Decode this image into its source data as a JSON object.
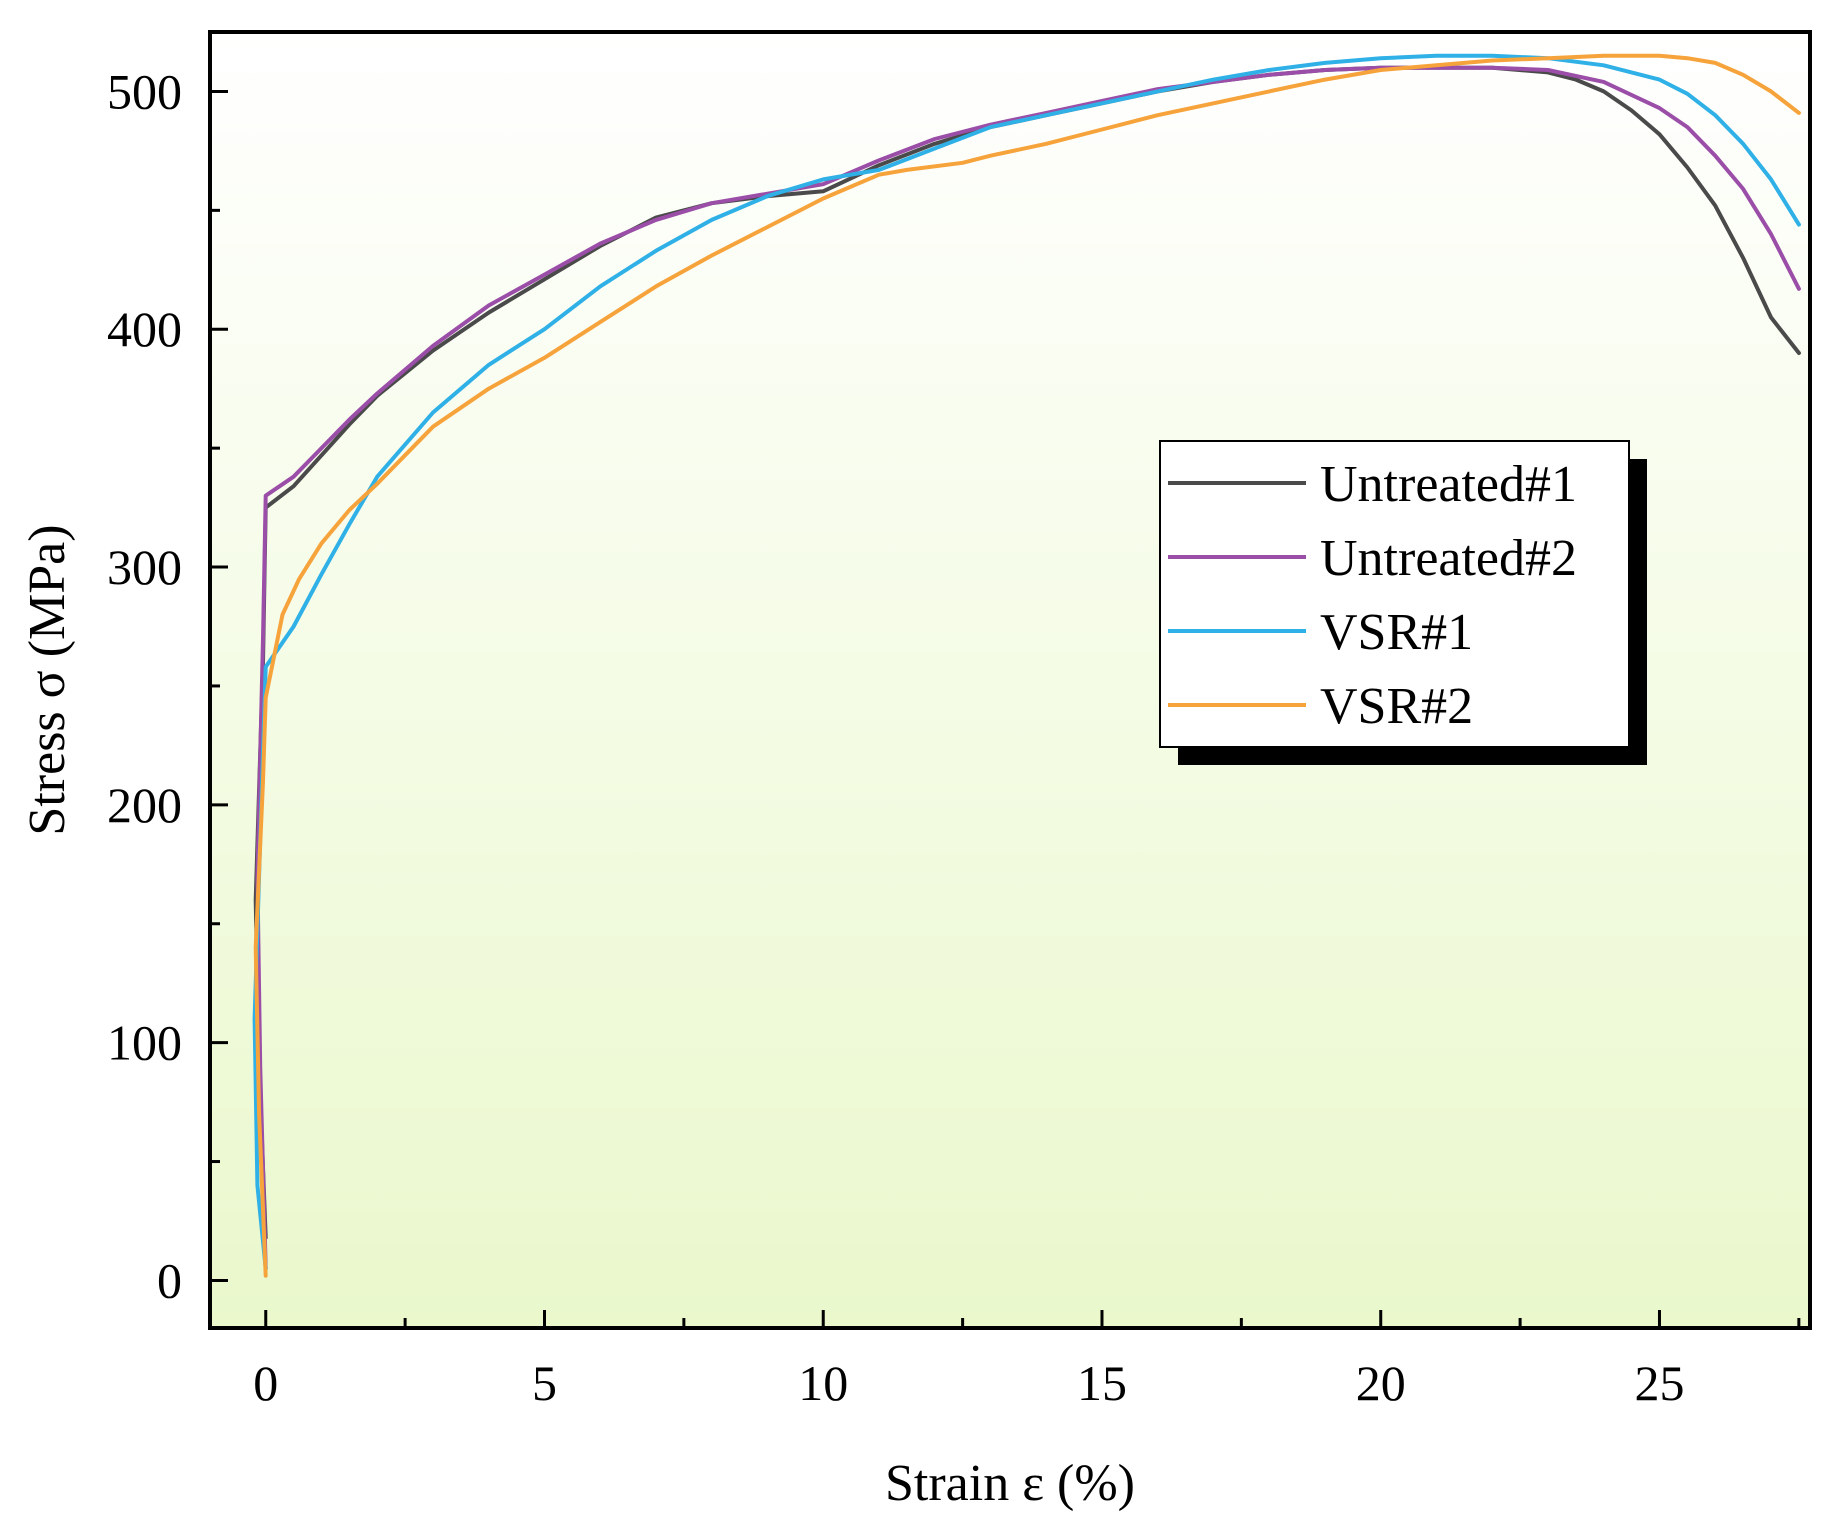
{
  "chart_data": {
    "type": "line",
    "title": "",
    "xlabel": "Strain ε (%)",
    "ylabel": "Stress σ (MPa)",
    "xlim": [
      -1,
      27.7
    ],
    "ylim": [
      -20,
      525
    ],
    "xticks": [
      0,
      5,
      10,
      15,
      20,
      25
    ],
    "yticks": [
      0,
      100,
      200,
      300,
      400,
      500
    ],
    "xtick_labels": [
      "0",
      "5",
      "10",
      "15",
      "20",
      "25"
    ],
    "ytick_labels": [
      "0",
      "100",
      "200",
      "300",
      "400",
      "500"
    ],
    "grid": false,
    "background_gradient": [
      "#ffffff",
      "#eaf8cc"
    ],
    "legend_position": "center-right",
    "series": [
      {
        "name": "Untreated#1",
        "color": "#4a4a4a",
        "x": [
          0.0,
          -0.12,
          -0.18,
          -0.05,
          0.0,
          0.5,
          1.0,
          1.5,
          2.0,
          3.0,
          4.0,
          5.0,
          6.0,
          7.0,
          8.0,
          9.0,
          10.0,
          11.0,
          12.0,
          13.0,
          14.0,
          15.0,
          16.0,
          17.0,
          18.0,
          19.0,
          20.0,
          21.0,
          22.0,
          23.0,
          23.5,
          24.0,
          24.5,
          25.0,
          25.5,
          26.0,
          26.5,
          27.0,
          27.5
        ],
        "y": [
          18,
          90,
          160,
          260,
          325,
          334,
          347,
          360,
          372,
          391,
          407,
          421,
          435,
          447,
          453,
          456,
          458,
          469,
          478,
          485,
          490,
          495,
          500,
          504,
          507,
          509,
          510,
          510,
          510,
          508,
          505,
          500,
          492,
          482,
          468,
          452,
          430,
          405,
          390
        ]
      },
      {
        "name": "Untreated#2",
        "color": "#9b4ea8",
        "x": [
          0.0,
          -0.1,
          -0.15,
          -0.05,
          0.0,
          0.5,
          1.0,
          1.5,
          2.0,
          3.0,
          4.0,
          5.0,
          6.0,
          7.0,
          8.0,
          9.0,
          10.0,
          11.0,
          12.0,
          13.0,
          14.0,
          15.0,
          16.0,
          17.0,
          18.0,
          19.0,
          20.0,
          21.0,
          22.0,
          23.0,
          24.0,
          25.0,
          25.5,
          26.0,
          26.5,
          27.0,
          27.5
        ],
        "y": [
          5,
          90,
          170,
          270,
          330,
          338,
          350,
          362,
          373,
          393,
          410,
          423,
          436,
          446,
          453,
          457,
          461,
          471,
          480,
          486,
          491,
          496,
          501,
          504,
          507,
          509,
          510,
          510,
          510,
          509,
          504,
          493,
          485,
          473,
          459,
          440,
          417
        ]
      },
      {
        "name": "VSR#1",
        "color": "#2fb0e6",
        "x": [
          0.0,
          -0.15,
          -0.2,
          -0.08,
          0.0,
          0.5,
          1.0,
          1.5,
          2.0,
          3.0,
          4.0,
          5.0,
          6.0,
          7.0,
          8.0,
          9.0,
          10.0,
          11.0,
          12.0,
          13.0,
          14.0,
          15.0,
          16.0,
          17.0,
          18.0,
          19.0,
          20.0,
          21.0,
          22.0,
          23.0,
          24.0,
          25.0,
          25.5,
          26.0,
          26.5,
          27.0,
          27.5
        ],
        "y": [
          5,
          40,
          110,
          200,
          258,
          275,
          297,
          318,
          338,
          365,
          385,
          400,
          418,
          433,
          446,
          456,
          463,
          467,
          476,
          485,
          490,
          495,
          500,
          505,
          509,
          512,
          514,
          515,
          515,
          514,
          511,
          505,
          499,
          490,
          478,
          463,
          444
        ]
      },
      {
        "name": "VSR#2",
        "color": "#f6a33c",
        "x": [
          0.0,
          -0.12,
          -0.18,
          -0.05,
          0.0,
          0.3,
          0.6,
          1.0,
          1.5,
          2.0,
          3.0,
          4.0,
          5.0,
          6.0,
          7.0,
          8.0,
          9.0,
          10.0,
          11.0,
          11.5,
          12.5,
          13.0,
          14.0,
          15.0,
          16.0,
          17.0,
          18.0,
          19.0,
          20.0,
          21.0,
          22.0,
          23.0,
          24.0,
          25.0,
          25.5,
          26.0,
          26.5,
          27.0,
          27.5
        ],
        "y": [
          2,
          70,
          140,
          210,
          245,
          280,
          295,
          310,
          324,
          335,
          359,
          375,
          388,
          403,
          418,
          431,
          443,
          455,
          465,
          467,
          470,
          473,
          478,
          484,
          490,
          495,
          500,
          505,
          509,
          511,
          513,
          514,
          515,
          515,
          514,
          512,
          507,
          500,
          491
        ]
      }
    ]
  }
}
